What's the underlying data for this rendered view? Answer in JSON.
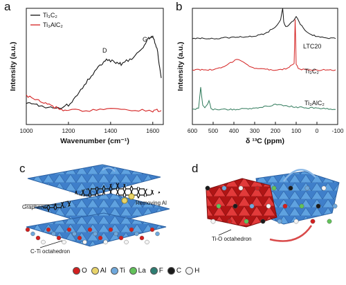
{
  "panels": {
    "a": {
      "letter": "a"
    },
    "b": {
      "letter": "b"
    },
    "c": {
      "letter": "c"
    },
    "d": {
      "letter": "d"
    }
  },
  "chart_data": [
    {
      "type": "line",
      "panel": "a",
      "xlabel": "Wavenumber (cm⁻¹)",
      "ylabel": "Intensity (a.u.)",
      "xlim": [
        1000,
        1650
      ],
      "xticks": [
        "1000",
        "1200",
        "1400",
        "1600"
      ],
      "annotations": [
        "D",
        "G"
      ],
      "legend": [
        "Ti₃C₂",
        "Ti₃AlC₂"
      ],
      "legend_position": "top-left",
      "colors": {
        "Ti3C2": "#111111",
        "Ti3AlC2": "#d42020"
      },
      "series": [
        {
          "name": "Ti₃C₂",
          "x": [
            1000,
            1050,
            1100,
            1150,
            1200,
            1250,
            1300,
            1350,
            1380,
            1420,
            1450,
            1500,
            1550,
            1580,
            1600,
            1620,
            1640
          ],
          "y": [
            0.18,
            0.17,
            0.15,
            0.14,
            0.17,
            0.27,
            0.4,
            0.51,
            0.56,
            0.54,
            0.52,
            0.57,
            0.66,
            0.74,
            0.76,
            0.66,
            0.4
          ]
        },
        {
          "name": "Ti₃AlC₂",
          "x": [
            1000,
            1050,
            1100,
            1150,
            1200,
            1300,
            1400,
            1500,
            1600,
            1640
          ],
          "y": [
            0.25,
            0.21,
            0.17,
            0.14,
            0.12,
            0.12,
            0.14,
            0.13,
            0.12,
            0.12
          ]
        }
      ]
    },
    {
      "type": "line",
      "panel": "b",
      "xlabel": "δ ¹³C (ppm)",
      "ylabel": "Intensity (a.u.)",
      "xlim": [
        600,
        -100
      ],
      "xticks": [
        "600",
        "500",
        "400",
        "300",
        "200",
        "100",
        "0",
        "-100"
      ],
      "series_labels": [
        "LTC20",
        "Ti₃C₂",
        "Ti₃AlC₂"
      ],
      "colors": {
        "LTC20": "#111111",
        "Ti3C2": "#d42020",
        "Ti3AlC2": "#2f7a5a"
      },
      "series": [
        {
          "name": "LTC20",
          "x": [
            600,
            500,
            400,
            300,
            250,
            200,
            175,
            165,
            160,
            150,
            120,
            100,
            80,
            50,
            20,
            0,
            -50,
            -90
          ],
          "y": [
            0.74,
            0.74,
            0.75,
            0.76,
            0.78,
            0.84,
            0.9,
            1.0,
            0.88,
            0.84,
            0.88,
            0.93,
            0.86,
            0.8,
            0.77,
            0.76,
            0.74,
            0.74
          ]
        },
        {
          "name": "Ti₃C₂",
          "x": [
            600,
            500,
            440,
            400,
            380,
            350,
            300,
            200,
            150,
            110,
            105,
            100,
            90,
            50,
            0,
            -90
          ],
          "y": [
            0.47,
            0.47,
            0.5,
            0.55,
            0.56,
            0.53,
            0.48,
            0.47,
            0.48,
            0.52,
            0.9,
            0.52,
            0.48,
            0.47,
            0.47,
            0.47
          ]
        },
        {
          "name": "Ti₃AlC₂",
          "x": [
            600,
            570,
            560,
            550,
            540,
            520,
            510,
            500,
            400,
            300,
            200,
            100,
            0,
            -90
          ],
          "y": [
            0.13,
            0.14,
            0.32,
            0.16,
            0.14,
            0.2,
            0.14,
            0.13,
            0.13,
            0.14,
            0.17,
            0.15,
            0.14,
            0.13
          ]
        }
      ]
    }
  ],
  "schematic_c": {
    "labels": {
      "graphene": "Graphene",
      "removing_al": "Removing Al",
      "c_ti": "C-Ti octahedron"
    }
  },
  "schematic_d": {
    "labels": {
      "ti_o": "Ti-O octahedron"
    }
  },
  "atom_legend": [
    {
      "label": "O",
      "color": "#d21f1f"
    },
    {
      "label": "Al",
      "color": "#e8d36a"
    },
    {
      "label": "Ti",
      "color": "#6fa8dc"
    },
    {
      "label": "La",
      "color": "#62c25a"
    },
    {
      "label": "F",
      "color": "#2e7d72"
    },
    {
      "label": "C",
      "color": "#1a1a1a"
    },
    {
      "label": "H",
      "color": "#f4f4f4"
    }
  ]
}
